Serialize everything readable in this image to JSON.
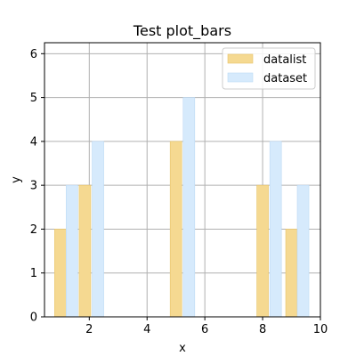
{
  "chart_data": {
    "type": "bar",
    "title": "Test plot_bars",
    "xlabel": "x",
    "ylabel": "y",
    "xlim": [
      0.45,
      10
    ],
    "ylim": [
      0,
      6.25
    ],
    "xticks": [
      2,
      4,
      6,
      8,
      10
    ],
    "yticks": [
      0,
      1,
      2,
      3,
      4,
      5,
      6
    ],
    "grid": true,
    "legend_position": "top-right",
    "series": [
      {
        "name": "datalist",
        "color": "#f5d991",
        "edge_color": "#e8c46a",
        "x": [
          1,
          1.85,
          5,
          8,
          9
        ],
        "values": [
          2,
          3,
          4,
          3,
          2
        ]
      },
      {
        "name": "dataset",
        "color": "#d6eafc",
        "edge_color": "#bcdaf5",
        "x": [
          1.4,
          2.3,
          5.45,
          8.45,
          9.4
        ],
        "values": [
          3,
          4,
          5,
          4,
          3
        ]
      }
    ]
  }
}
